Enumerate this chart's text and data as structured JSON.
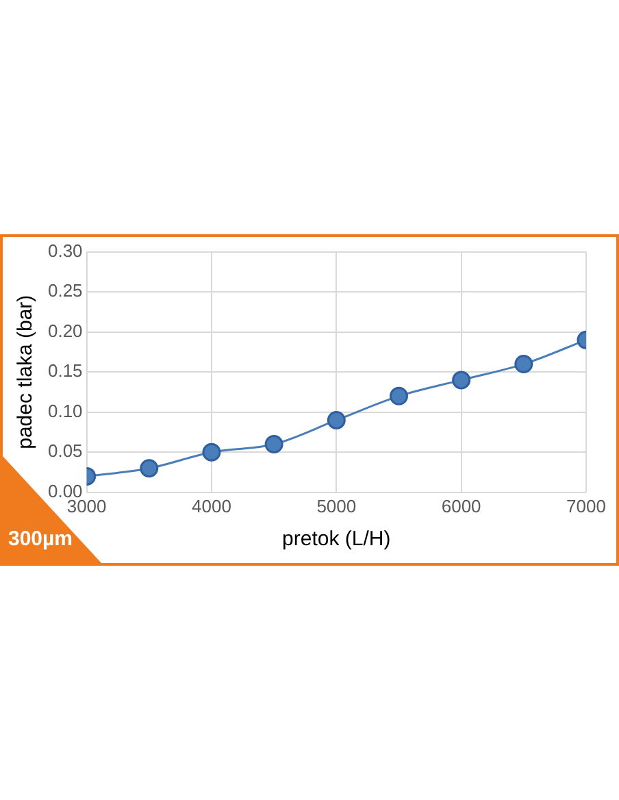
{
  "chart_data": {
    "type": "line",
    "xlabel": "pretok (L/H)",
    "ylabel": "padec tlaka (bar)",
    "x": [
      3000,
      3500,
      4000,
      4500,
      5000,
      5500,
      6000,
      6500,
      7000
    ],
    "series": [
      {
        "color": "#4a7ebb",
        "values": [
          0.02,
          0.03,
          0.05,
          0.06,
          0.09,
          0.12,
          0.14,
          0.16,
          0.19
        ]
      }
    ],
    "xlim": [
      3000,
      7000
    ],
    "xticks": [
      3000,
      4000,
      5000,
      6000,
      7000
    ],
    "ylim": [
      0,
      0.3
    ],
    "yticks": [
      {
        "value": 0,
        "label": "0.00"
      },
      {
        "value": 0.05,
        "label": "0.05"
      },
      {
        "value": 0.1,
        "label": "0.10"
      },
      {
        "value": 0.15,
        "label": "0.15"
      },
      {
        "value": 0.2,
        "label": "0.20"
      },
      {
        "value": 0.25,
        "label": "0.25"
      },
      {
        "value": 0.3,
        "label": "0.30"
      }
    ],
    "grid": true,
    "legend": false,
    "marker": "circle",
    "line_style": "solid",
    "annotations": [
      "300µm"
    ]
  }
}
